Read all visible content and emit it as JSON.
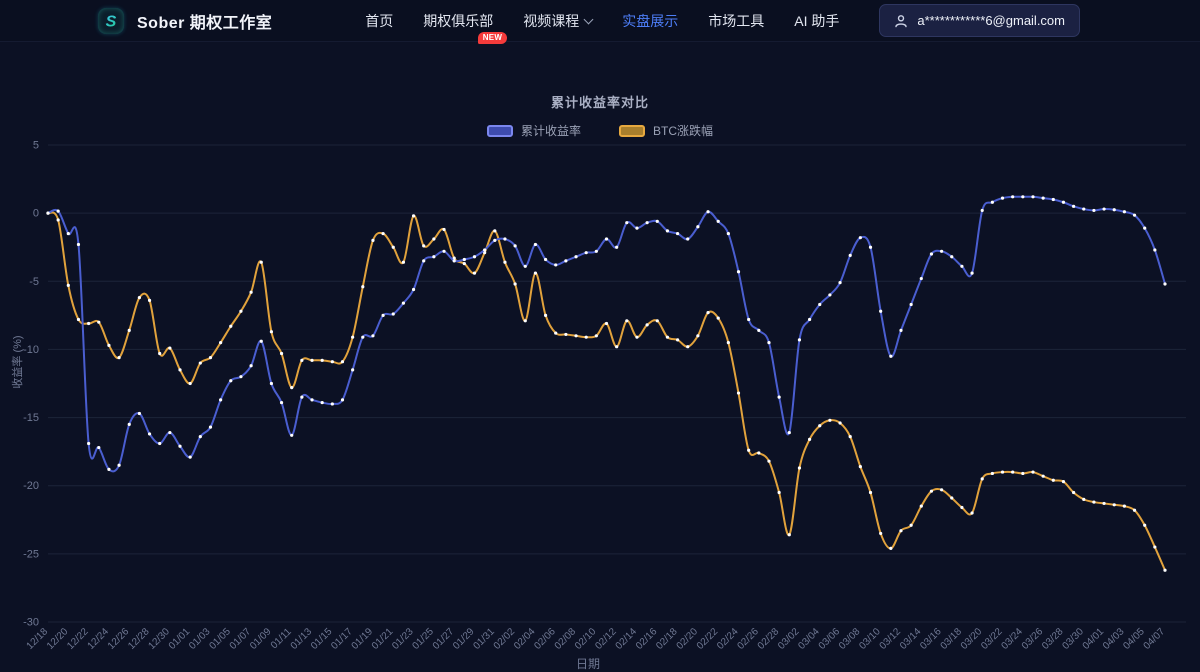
{
  "nav": {
    "brand": {
      "logo_letter": "S",
      "title": "Sober 期权工作室"
    },
    "items": [
      {
        "label": "首页"
      },
      {
        "label": "期权俱乐部",
        "badge": "NEW"
      },
      {
        "label": "视频课程",
        "has_dropdown": true
      },
      {
        "label": "实盘展示",
        "active": true
      },
      {
        "label": "市场工具"
      },
      {
        "label": "AI 助手"
      }
    ],
    "account": {
      "email": "a************6@gmail.com"
    }
  },
  "colors": {
    "page_bg": "#0c1124",
    "nav_bg": "#0a0f20",
    "accent_active": "#4d7ef7",
    "badge_red": "#f53b3b",
    "line_blue": "#4a5ed0",
    "line_gold": "#e1a23c",
    "grid": "#1d2439",
    "tick_text": "#6f7893",
    "dot": "#ffffff"
  },
  "chart_data": {
    "type": "line",
    "title": "累计收益率对比",
    "xlabel": "日期",
    "ylabel": "收益率 (%)",
    "ylim": [
      -30,
      5
    ],
    "ytick_step": 5,
    "grid": true,
    "smooth": true,
    "legend_position": "top",
    "x_tick_every": 2,
    "categories": [
      "12/18",
      "12/19",
      "12/20",
      "12/21",
      "12/22",
      "12/23",
      "12/24",
      "12/25",
      "12/26",
      "12/27",
      "12/28",
      "12/29",
      "12/30",
      "12/31",
      "01/01",
      "01/02",
      "01/03",
      "01/04",
      "01/05",
      "01/06",
      "01/07",
      "01/08",
      "01/09",
      "01/10",
      "01/11",
      "01/12",
      "01/13",
      "01/14",
      "01/15",
      "01/16",
      "01/17",
      "01/18",
      "01/19",
      "01/20",
      "01/21",
      "01/22",
      "01/23",
      "01/24",
      "01/25",
      "01/26",
      "01/27",
      "01/28",
      "01/29",
      "01/30",
      "01/31",
      "02/01",
      "02/02",
      "02/03",
      "02/04",
      "02/05",
      "02/06",
      "02/07",
      "02/08",
      "02/09",
      "02/10",
      "02/11",
      "02/12",
      "02/13",
      "02/14",
      "02/15",
      "02/16",
      "02/17",
      "02/18",
      "02/19",
      "02/20",
      "02/21",
      "02/22",
      "02/23",
      "02/24",
      "02/25",
      "02/26",
      "02/27",
      "02/28",
      "03/01",
      "03/02",
      "03/03",
      "03/04",
      "03/05",
      "03/06",
      "03/07",
      "03/08",
      "03/09",
      "03/10",
      "03/11",
      "03/12",
      "03/13",
      "03/14",
      "03/15",
      "03/16",
      "03/17",
      "03/18",
      "03/19",
      "03/20",
      "03/21",
      "03/22",
      "03/23",
      "03/24",
      "03/25",
      "03/26",
      "03/27",
      "03/28",
      "03/29",
      "03/30",
      "03/31",
      "04/01",
      "04/02",
      "04/03",
      "04/04",
      "04/05",
      "04/06",
      "04/07"
    ],
    "series": [
      {
        "name": "累计收益率",
        "color": "#4a5ed0",
        "values": [
          0.0,
          0.15,
          -1.5,
          -2.3,
          -16.9,
          -17.2,
          -18.8,
          -18.5,
          -15.5,
          -14.7,
          -16.2,
          -16.9,
          -16.1,
          -17.1,
          -17.9,
          -16.4,
          -15.7,
          -13.7,
          -12.3,
          -12.0,
          -11.2,
          -9.4,
          -12.5,
          -13.9,
          -16.3,
          -13.5,
          -13.7,
          -13.9,
          -14.0,
          -13.7,
          -11.5,
          -9.1,
          -9.0,
          -7.5,
          -7.4,
          -6.6,
          -5.6,
          -3.5,
          -3.2,
          -2.8,
          -3.5,
          -3.4,
          -3.2,
          -2.7,
          -2.0,
          -1.9,
          -2.4,
          -3.9,
          -2.3,
          -3.4,
          -3.8,
          -3.5,
          -3.2,
          -2.9,
          -2.8,
          -1.9,
          -2.5,
          -0.7,
          -1.1,
          -0.7,
          -0.6,
          -1.3,
          -1.5,
          -1.9,
          -1.0,
          0.1,
          -0.6,
          -1.5,
          -4.3,
          -7.8,
          -8.6,
          -9.5,
          -13.5,
          -16.1,
          -9.3,
          -7.8,
          -6.7,
          -6.0,
          -5.1,
          -3.1,
          -1.8,
          -2.5,
          -7.2,
          -10.5,
          -8.6,
          -6.7,
          -4.8,
          -3.0,
          -2.8,
          -3.2,
          -3.9,
          -4.4,
          0.2,
          0.8,
          1.1,
          1.2,
          1.2,
          1.2,
          1.1,
          1.0,
          0.8,
          0.5,
          0.3,
          0.2,
          0.3,
          0.25,
          0.1,
          -0.15,
          -1.1,
          -2.7,
          -5.2
        ]
      },
      {
        "name": "BTC涨跌幅",
        "color": "#e1a23c",
        "values": [
          0.0,
          -0.5,
          -5.3,
          -7.8,
          -8.1,
          -8.0,
          -9.7,
          -10.6,
          -8.6,
          -6.2,
          -6.4,
          -10.3,
          -9.9,
          -11.5,
          -12.5,
          -11.0,
          -10.6,
          -9.5,
          -8.3,
          -7.2,
          -5.8,
          -3.6,
          -8.7,
          -10.3,
          -12.8,
          -10.8,
          -10.8,
          -10.8,
          -10.9,
          -10.9,
          -9.1,
          -5.4,
          -2.0,
          -1.5,
          -2.5,
          -3.6,
          -0.2,
          -2.4,
          -1.9,
          -1.2,
          -3.3,
          -3.7,
          -4.4,
          -2.9,
          -1.3,
          -3.6,
          -5.2,
          -7.9,
          -4.4,
          -7.5,
          -8.8,
          -8.9,
          -9.0,
          -9.1,
          -9.0,
          -8.1,
          -9.8,
          -7.9,
          -9.1,
          -8.2,
          -7.9,
          -9.1,
          -9.3,
          -9.8,
          -9.0,
          -7.3,
          -7.7,
          -9.5,
          -13.2,
          -17.4,
          -17.6,
          -18.2,
          -20.5,
          -23.6,
          -18.7,
          -16.6,
          -15.6,
          -15.2,
          -15.4,
          -16.4,
          -18.6,
          -20.5,
          -23.5,
          -24.6,
          -23.3,
          -22.9,
          -21.5,
          -20.4,
          -20.3,
          -20.9,
          -21.6,
          -22.0,
          -19.5,
          -19.1,
          -19.0,
          -19.0,
          -19.1,
          -19.0,
          -19.3,
          -19.6,
          -19.7,
          -20.5,
          -21.0,
          -21.2,
          -21.3,
          -21.4,
          -21.5,
          -21.8,
          -22.9,
          -24.5,
          -26.2
        ]
      }
    ]
  }
}
